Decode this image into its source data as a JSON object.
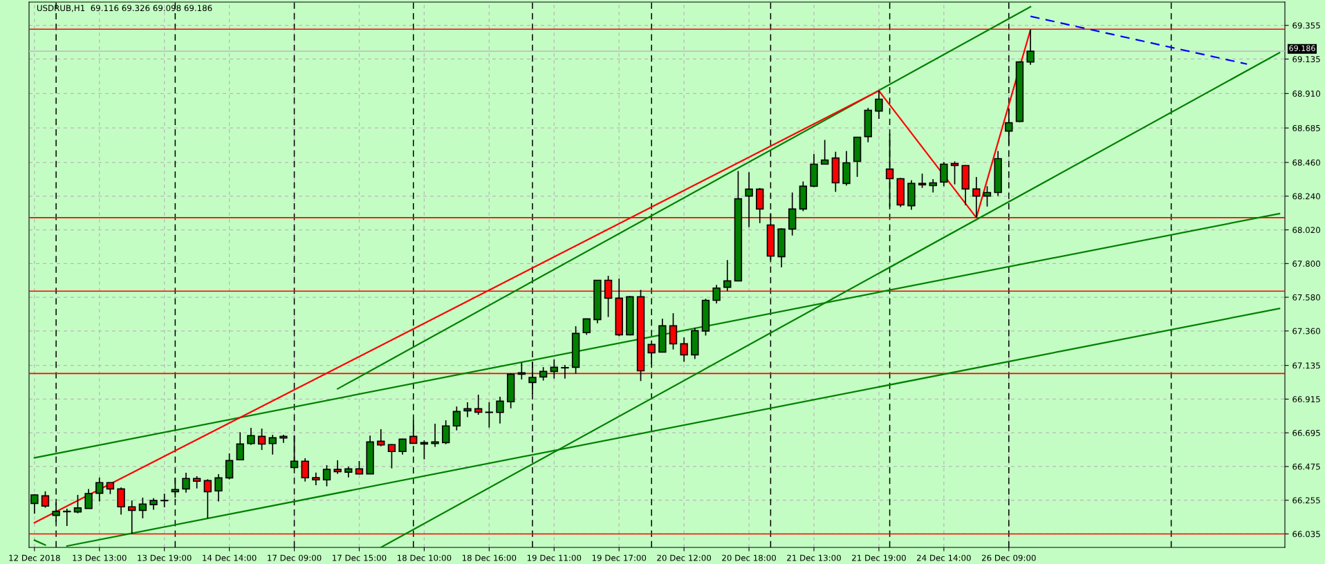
{
  "chart_data": {
    "type": "candlestick",
    "title": "USDRUB,H1  69.116 69.326 69.098 69.186",
    "categories": [
      "12 Dec 2018",
      null,
      null,
      null,
      null,
      null,
      "13 Dec 13:00",
      null,
      null,
      null,
      null,
      null,
      "13 Dec 19:00",
      null,
      null,
      null,
      null,
      null,
      "14 Dec 14:00",
      null,
      null,
      null,
      null,
      null,
      "17 Dec 09:00",
      null,
      null,
      null,
      null,
      null,
      "17 Dec 15:00",
      null,
      null,
      null,
      null,
      null,
      "18 Dec 10:00",
      null,
      null,
      null,
      null,
      null,
      "18 Dec 16:00",
      null,
      null,
      null,
      null,
      null,
      "19 Dec 11:00",
      null,
      null,
      null,
      null,
      null,
      "19 Dec 17:00",
      null,
      null,
      null,
      null,
      null,
      "20 Dec 12:00",
      null,
      null,
      null,
      null,
      null,
      "20 Dec 18:00",
      null,
      null,
      null,
      null,
      null,
      "21 Dec 13:00",
      null,
      null,
      null,
      null,
      null,
      "21 Dec 19:00",
      null,
      null,
      null,
      null,
      null,
      "24 Dec 14:00",
      null,
      null,
      null,
      null,
      null,
      "26 Dec 09:00",
      null,
      null,
      null,
      null,
      null,
      null,
      null,
      null,
      null,
      null,
      null,
      null,
      null,
      null,
      null,
      null,
      null,
      null,
      null,
      null,
      null,
      null,
      null,
      null,
      null
    ],
    "ohlc": [
      [
        66.234,
        66.295,
        66.167,
        66.29
      ],
      [
        66.284,
        66.313,
        66.206,
        66.217
      ],
      [
        66.156,
        66.239,
        66.114,
        66.182
      ],
      [
        66.18,
        66.2,
        66.087,
        66.183
      ],
      [
        66.179,
        66.29,
        66.17,
        66.205
      ],
      [
        66.201,
        66.328,
        66.2,
        66.298
      ],
      [
        66.301,
        66.403,
        66.247,
        66.37
      ],
      [
        66.37,
        66.372,
        66.295,
        66.329
      ],
      [
        66.329,
        66.338,
        66.161,
        66.212
      ],
      [
        66.212,
        66.254,
        66.035,
        66.189
      ],
      [
        66.189,
        66.272,
        66.137,
        66.23
      ],
      [
        66.226,
        66.268,
        66.193,
        66.253
      ],
      [
        66.252,
        66.298,
        66.209,
        66.254
      ],
      [
        66.311,
        66.403,
        66.272,
        66.325
      ],
      [
        66.329,
        66.434,
        66.305,
        66.397
      ],
      [
        66.397,
        66.412,
        66.332,
        66.379
      ],
      [
        66.383,
        66.392,
        66.137,
        66.311
      ],
      [
        66.316,
        66.425,
        66.247,
        66.401
      ],
      [
        66.401,
        66.561,
        66.391,
        66.514
      ],
      [
        66.519,
        66.699,
        66.519,
        66.622
      ],
      [
        66.625,
        66.728,
        66.616,
        66.677
      ],
      [
        66.672,
        66.723,
        66.583,
        66.622
      ],
      [
        66.625,
        66.682,
        66.553,
        66.663
      ],
      [
        66.661,
        66.683,
        66.63,
        66.672
      ],
      [
        66.468,
        66.678,
        66.465,
        66.51
      ],
      [
        66.51,
        66.529,
        66.377,
        66.402
      ],
      [
        66.402,
        66.435,
        66.353,
        66.388
      ],
      [
        66.388,
        66.484,
        66.346,
        66.456
      ],
      [
        66.456,
        66.516,
        66.427,
        66.442
      ],
      [
        66.438,
        66.474,
        66.404,
        66.46
      ],
      [
        66.46,
        66.511,
        66.424,
        66.427
      ],
      [
        66.427,
        66.677,
        66.427,
        66.636
      ],
      [
        66.64,
        66.719,
        66.607,
        66.616
      ],
      [
        66.618,
        66.621,
        66.463,
        66.573
      ],
      [
        66.573,
        66.657,
        66.553,
        66.654
      ],
      [
        66.672,
        66.777,
        66.625,
        66.627
      ],
      [
        66.631,
        66.646,
        66.522,
        66.622
      ],
      [
        66.625,
        66.755,
        66.603,
        66.636
      ],
      [
        66.631,
        66.777,
        66.621,
        66.74
      ],
      [
        66.74,
        66.867,
        66.711,
        66.834
      ],
      [
        66.839,
        66.895,
        66.797,
        66.852
      ],
      [
        66.852,
        66.944,
        66.813,
        66.83
      ],
      [
        66.83,
        66.895,
        66.729,
        66.828
      ],
      [
        66.828,
        66.931,
        66.756,
        66.902
      ],
      [
        66.898,
        67.084,
        66.855,
        67.078
      ],
      [
        67.078,
        67.153,
        67.043,
        67.087
      ],
      [
        67.024,
        67.156,
        66.949,
        67.057
      ],
      [
        67.06,
        67.124,
        67.036,
        67.096
      ],
      [
        67.096,
        67.174,
        67.049,
        67.123
      ],
      [
        67.119,
        67.138,
        67.049,
        67.121
      ],
      [
        67.123,
        67.391,
        67.081,
        67.344
      ],
      [
        67.349,
        67.439,
        67.335,
        67.439
      ],
      [
        67.434,
        67.691,
        67.41,
        67.691
      ],
      [
        67.691,
        67.72,
        67.451,
        67.574
      ],
      [
        67.574,
        67.702,
        67.326,
        67.335
      ],
      [
        67.335,
        67.588,
        67.331,
        67.583
      ],
      [
        67.583,
        67.628,
        67.033,
        67.1
      ],
      [
        67.272,
        67.272,
        67.144,
        67.218
      ],
      [
        67.222,
        67.44,
        67.222,
        67.394
      ],
      [
        67.394,
        67.476,
        67.239,
        67.276
      ],
      [
        67.276,
        67.317,
        67.158,
        67.204
      ],
      [
        67.204,
        67.38,
        67.177,
        67.362
      ],
      [
        67.36,
        67.57,
        67.33,
        67.56
      ],
      [
        67.56,
        67.66,
        67.54,
        67.64
      ],
      [
        67.645,
        67.823,
        67.62,
        67.687
      ],
      [
        67.687,
        68.404,
        67.685,
        68.223
      ],
      [
        68.241,
        68.396,
        68.038,
        68.286
      ],
      [
        68.286,
        68.293,
        68.064,
        68.156
      ],
      [
        68.052,
        68.129,
        67.822,
        67.849
      ],
      [
        67.845,
        68.03,
        67.775,
        68.025
      ],
      [
        68.025,
        68.264,
        67.983,
        68.156
      ],
      [
        68.156,
        68.336,
        68.142,
        68.305
      ],
      [
        68.305,
        68.516,
        68.3,
        68.449
      ],
      [
        68.449,
        68.607,
        68.447,
        68.476
      ],
      [
        68.489,
        68.53,
        68.268,
        68.327
      ],
      [
        68.323,
        68.535,
        68.309,
        68.458
      ],
      [
        68.467,
        68.625,
        68.366,
        68.625
      ],
      [
        68.629,
        68.816,
        68.592,
        68.801
      ],
      [
        68.796,
        68.928,
        68.745,
        68.873
      ],
      [
        68.417,
        68.647,
        68.169,
        68.354
      ],
      [
        68.354,
        68.359,
        68.169,
        68.183
      ],
      [
        68.178,
        68.344,
        68.151,
        68.323
      ],
      [
        68.323,
        68.387,
        68.294,
        68.314
      ],
      [
        68.309,
        68.351,
        68.264,
        68.327
      ],
      [
        68.332,
        68.462,
        68.305,
        68.449
      ],
      [
        68.453,
        68.467,
        68.317,
        68.44
      ],
      [
        68.44,
        68.443,
        68.181,
        68.287
      ],
      [
        68.287,
        68.365,
        68.1,
        68.241
      ],
      [
        68.241,
        68.305,
        68.172,
        68.264
      ],
      [
        68.264,
        68.535,
        68.241,
        68.485
      ],
      [
        68.665,
        68.81,
        68.575,
        68.719
      ],
      [
        68.728,
        69.121,
        68.722,
        69.116
      ],
      [
        69.116,
        69.326,
        69.098,
        69.186
      ],
      null,
      null,
      null,
      null,
      null,
      null,
      null,
      null,
      null,
      null,
      null,
      null,
      null,
      null,
      null,
      null,
      null,
      null,
      null,
      null,
      null,
      null,
      null
    ],
    "colors": [
      "#008000",
      "#ff0000",
      "#008000",
      "#008000",
      "#008000",
      "#008000",
      "#008000",
      "#ff0000",
      "#ff0000",
      "#ff0000",
      "#008000",
      "#008000",
      "#008000",
      "#008000",
      "#008000",
      "#ff0000",
      "#ff0000",
      "#008000",
      "#008000",
      "#008000",
      "#008000",
      "#ff0000",
      "#008000",
      "#008000",
      "#008000",
      "#ff0000",
      "#ff0000",
      "#008000",
      "#ff0000",
      "#008000",
      "#ff0000",
      "#008000",
      "#ff0000",
      "#ff0000",
      "#008000",
      "#ff0000",
      "#ff0000",
      "#008000",
      "#008000",
      "#008000",
      "#008000",
      "#ff0000",
      "#ff0000",
      "#008000",
      "#008000",
      "#008000",
      "#008000",
      "#008000",
      "#008000",
      "#008000",
      "#008000",
      "#008000",
      "#008000",
      "#ff0000",
      "#ff0000",
      "#008000",
      "#ff0000",
      "#ff0000",
      "#008000",
      "#ff0000",
      "#ff0000",
      "#008000",
      "#008000",
      "#008000",
      "#008000",
      "#008000",
      "#008000",
      "#ff0000",
      "#ff0000",
      "#008000",
      "#008000",
      "#008000",
      "#008000",
      "#008000",
      "#ff0000",
      "#008000",
      "#008000",
      "#008000",
      "#008000",
      "#ff0000",
      "#ff0000",
      "#008000",
      "#ff0000",
      "#008000",
      "#008000",
      "#ff0000",
      "#ff0000",
      "#ff0000",
      "#008000",
      "#008000",
      "#008000",
      "#008000",
      "#008000",
      null,
      null,
      null,
      null,
      null,
      null,
      null,
      null,
      null,
      null,
      null,
      null,
      null,
      null,
      null,
      null,
      null,
      null,
      null,
      null,
      null,
      null,
      null
    ],
    "series": [
      {
        "type": "line",
        "color": "#008000",
        "values": [
          null,
          null,
          null,
          null,
          null,
          null,
          null,
          null,
          null,
          null,
          null,
          null,
          null,
          null,
          null,
          null,
          null,
          null,
          null,
          null,
          null,
          null,
          null,
          null,
          null,
          null,
          null,
          null,
          66.982,
          null,
          null,
          null,
          null,
          null,
          null,
          null,
          null,
          null,
          null,
          null,
          null,
          null,
          null,
          null,
          null,
          null,
          null,
          null,
          null,
          null,
          null,
          null,
          null,
          null,
          null,
          null,
          null,
          null,
          null,
          null,
          null,
          null,
          null,
          null,
          null,
          null,
          null,
          null,
          null,
          null,
          null,
          null,
          null,
          null,
          null,
          null,
          null,
          null,
          null,
          null,
          null,
          null,
          null,
          null,
          null,
          null,
          null,
          null,
          null,
          null,
          null,
          null,
          69.476,
          null,
          null,
          null,
          null,
          null,
          null,
          null,
          null,
          null,
          null,
          null,
          null,
          null,
          null,
          null,
          null,
          null,
          null,
          null,
          null,
          null,
          null,
          null
        ]
      },
      {
        "type": "line",
        "color": "#008000",
        "values": [
          null,
          null,
          null,
          null,
          null,
          null,
          null,
          null,
          null,
          null,
          null,
          null,
          null,
          null,
          null,
          null,
          null,
          null,
          null,
          null,
          null,
          null,
          null,
          null,
          null,
          null,
          null,
          null,
          null,
          null,
          null,
          null,
          65.947,
          null,
          null,
          null,
          null,
          null,
          null,
          null,
          null,
          null,
          null,
          null,
          null,
          null,
          null,
          null,
          null,
          null,
          null,
          null,
          null,
          null,
          null,
          null,
          null,
          null,
          null,
          null,
          null,
          null,
          null,
          null,
          null,
          null,
          null,
          null,
          null,
          null,
          null,
          null,
          null,
          null,
          null,
          null,
          null,
          null,
          null,
          null,
          null,
          null,
          null,
          null,
          null,
          null,
          null,
          null,
          null,
          null,
          null,
          null,
          null,
          null,
          null,
          null,
          null,
          null,
          null,
          null,
          null,
          null,
          null,
          null,
          null,
          null,
          null,
          null,
          null,
          null,
          null,
          null,
          null,
          null,
          null,
          69.176
        ]
      },
      {
        "type": "line",
        "color": "#008000",
        "values": [
          65.994,
          65.963,
          null,
          null,
          null,
          null,
          null,
          null,
          null,
          null,
          null,
          null,
          null,
          null,
          null,
          null,
          null,
          null,
          null,
          null,
          null,
          null,
          null,
          null,
          null,
          null,
          null,
          null,
          null,
          null,
          null,
          null,
          null,
          null,
          null,
          null,
          null,
          null,
          null,
          null,
          null,
          null,
          null,
          null,
          null,
          null,
          null,
          null,
          null,
          null,
          null,
          null,
          null,
          null,
          null,
          null,
          null,
          null,
          null,
          null,
          null,
          null,
          null,
          null,
          null,
          null,
          null,
          null,
          null,
          null,
          null,
          null,
          null,
          null,
          null,
          null,
          null,
          null,
          null,
          null,
          null,
          null,
          null,
          null,
          null,
          null,
          null,
          null,
          null,
          null,
          null,
          null,
          null,
          null,
          null,
          null,
          null,
          null,
          null,
          null,
          null,
          null,
          null,
          null,
          null,
          null,
          null,
          null,
          null,
          null,
          null,
          null,
          null,
          null,
          null,
          null
        ]
      },
      {
        "type": "line",
        "color": "#008000",
        "values": [
          66.532,
          null,
          null,
          null,
          null,
          null,
          null,
          null,
          null,
          null,
          null,
          null,
          null,
          null,
          null,
          null,
          null,
          null,
          null,
          null,
          null,
          null,
          null,
          null,
          null,
          null,
          null,
          null,
          null,
          null,
          null,
          null,
          null,
          null,
          null,
          null,
          null,
          null,
          null,
          null,
          null,
          null,
          null,
          null,
          null,
          null,
          null,
          null,
          null,
          null,
          null,
          null,
          null,
          null,
          null,
          null,
          null,
          null,
          null,
          null,
          null,
          null,
          null,
          null,
          null,
          null,
          null,
          null,
          null,
          null,
          null,
          null,
          null,
          null,
          null,
          null,
          null,
          null,
          null,
          null,
          null,
          null,
          null,
          null,
          null,
          null,
          null,
          null,
          null,
          null,
          null,
          null,
          null,
          null,
          null,
          null,
          null,
          null,
          null,
          null,
          null,
          null,
          null,
          null,
          null,
          null,
          null,
          null,
          null,
          null,
          null,
          null,
          null,
          null,
          null,
          68.126
        ]
      },
      {
        "type": "line",
        "color": "#008000",
        "values": [
          null,
          null,
          null,
          65.956,
          null,
          null,
          null,
          null,
          null,
          null,
          null,
          null,
          null,
          null,
          null,
          null,
          null,
          null,
          null,
          null,
          null,
          null,
          null,
          null,
          null,
          null,
          null,
          null,
          null,
          null,
          null,
          null,
          null,
          null,
          null,
          null,
          null,
          null,
          null,
          null,
          null,
          null,
          null,
          null,
          null,
          null,
          null,
          null,
          null,
          null,
          null,
          null,
          null,
          null,
          null,
          null,
          null,
          null,
          null,
          null,
          null,
          null,
          null,
          null,
          null,
          null,
          null,
          null,
          null,
          null,
          null,
          null,
          null,
          null,
          null,
          null,
          null,
          null,
          null,
          null,
          null,
          null,
          null,
          null,
          null,
          null,
          null,
          null,
          null,
          null,
          null,
          null,
          null,
          null,
          null,
          null,
          null,
          null,
          null,
          null,
          null,
          null,
          null,
          null,
          null,
          null,
          null,
          null,
          null,
          null,
          null,
          null,
          null,
          null,
          null,
          67.507
        ]
      },
      {
        "type": "line",
        "color": "#ff0000",
        "values": [
          66.108,
          null,
          null,
          null,
          null,
          null,
          null,
          null,
          null,
          null,
          null,
          null,
          null,
          null,
          null,
          null,
          null,
          null,
          null,
          null,
          null,
          null,
          null,
          null,
          null,
          null,
          null,
          null,
          null,
          null,
          null,
          null,
          null,
          null,
          null,
          null,
          null,
          null,
          null,
          null,
          null,
          null,
          null,
          null,
          null,
          null,
          null,
          null,
          null,
          null,
          null,
          null,
          null,
          null,
          null,
          null,
          null,
          null,
          null,
          null,
          null,
          null,
          null,
          null,
          null,
          null,
          null,
          null,
          null,
          null,
          null,
          null,
          null,
          null,
          null,
          null,
          null,
          null,
          68.928,
          null,
          null,
          null,
          null,
          null,
          null,
          null,
          null,
          68.1,
          null,
          null,
          null,
          null,
          69.326,
          null,
          null,
          null,
          null,
          null,
          null,
          null,
          null,
          null,
          null,
          null,
          null,
          null,
          null,
          null,
          null,
          null,
          null,
          null,
          null,
          null,
          null,
          null
        ]
      },
      {
        "type": "line",
        "color": "#0000ff",
        "line_style": "dashed",
        "values": [
          null,
          null,
          null,
          null,
          null,
          null,
          null,
          null,
          null,
          null,
          null,
          null,
          null,
          null,
          null,
          null,
          null,
          null,
          null,
          null,
          null,
          null,
          null,
          null,
          null,
          null,
          null,
          null,
          null,
          null,
          null,
          null,
          null,
          null,
          null,
          null,
          null,
          null,
          null,
          null,
          null,
          null,
          null,
          null,
          null,
          null,
          null,
          null,
          null,
          null,
          null,
          null,
          null,
          null,
          null,
          null,
          null,
          null,
          null,
          null,
          null,
          null,
          null,
          null,
          null,
          null,
          null,
          null,
          null,
          null,
          null,
          null,
          null,
          null,
          null,
          null,
          null,
          null,
          null,
          null,
          null,
          null,
          null,
          null,
          null,
          null,
          null,
          null,
          null,
          null,
          null,
          null,
          69.414,
          null,
          null,
          null,
          null,
          null,
          null,
          null,
          null,
          null,
          null,
          null,
          null,
          null,
          null,
          null,
          null,
          null,
          null,
          null,
          69.102,
          null,
          null,
          null
        ]
      }
    ],
    "ref_lines": [
      {
        "axis": "y",
        "value": 69.33,
        "color": "#ff0000"
      },
      {
        "axis": "y",
        "value": 68.1,
        "color": "#ff0000"
      },
      {
        "axis": "y",
        "value": 67.62,
        "color": "#ff0000"
      },
      {
        "axis": "y",
        "value": 67.082,
        "color": "#ff0000"
      },
      {
        "axis": "y",
        "value": 66.035,
        "color": "#ff0000"
      },
      {
        "axis": "y",
        "value": 69.186,
        "color": "#c0c0c0",
        "label": "69.186"
      }
    ],
    "ylim": [
      65.947,
      69.507
    ],
    "yticks": [
      66.035,
      66.255,
      66.475,
      66.695,
      66.915,
      67.135,
      {
        "value": 67.36,
        "label": "67.360"
      },
      {
        "value": 67.58,
        "label": "67.580"
      },
      {
        "value": 67.8,
        "label": "67.800"
      },
      {
        "value": 68.02,
        "label": "68.020"
      },
      {
        "value": 68.24,
        "label": "68.240"
      },
      {
        "value": 68.46,
        "label": "68.460"
      },
      68.685,
      {
        "value": 68.91,
        "label": "68.910"
      },
      69.135,
      69.355
    ],
    "grid": true
  }
}
